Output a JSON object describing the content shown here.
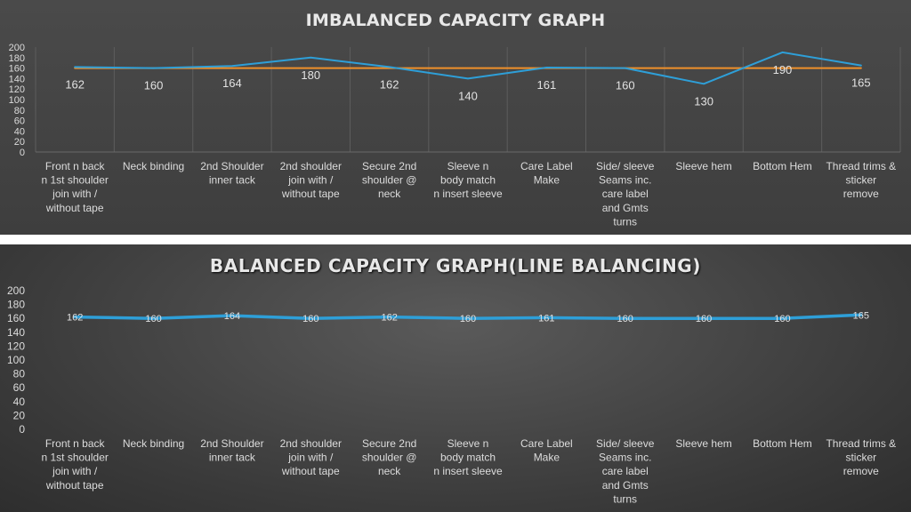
{
  "chart_data": [
    {
      "type": "line",
      "title": "IMBALANCED CAPACITY GRAPH",
      "categories": [
        "Front n back n 1st shoulder join with / without tape",
        "Neck binding",
        "2nd Shoulder inner tack",
        "2nd shoulder join with / without tape",
        "Secure 2nd shoulder @ neck",
        "Sleeve n body match n insert sleeve",
        "Care Label Make",
        "Side/ sleeve Seams inc. care label and Gmts turns",
        "Sleeve hem",
        "Bottom Hem",
        "Thread trims & sticker remove"
      ],
      "category_lines": [
        [
          "Front n back",
          "n 1st shoulder",
          "join with /",
          "without tape"
        ],
        [
          "Neck binding"
        ],
        [
          "2nd Shoulder",
          "inner tack"
        ],
        [
          "2nd shoulder",
          "join with /",
          "without tape"
        ],
        [
          "Secure 2nd",
          "shoulder @",
          "neck"
        ],
        [
          "Sleeve n",
          "body match",
          "n insert sleeve"
        ],
        [
          "Care Label",
          "Make"
        ],
        [
          "Side/ sleeve",
          "Seams inc.",
          "care label",
          "and Gmts",
          "turns"
        ],
        [
          "Sleeve hem"
        ],
        [
          "Bottom Hem"
        ],
        [
          "Thread trims &",
          "sticker",
          "remove"
        ]
      ],
      "series": [
        {
          "values": [
            162,
            160,
            164,
            180,
            162,
            140,
            161,
            160,
            130,
            190,
            165
          ],
          "color": "#2e9fd8"
        },
        {
          "values": [
            160,
            160,
            160,
            160,
            160,
            160,
            160,
            160,
            160,
            160,
            160
          ],
          "color": "#f0902a"
        }
      ],
      "data_labels": [
        "162",
        "160",
        "164",
        "180",
        "162",
        "140",
        "161",
        "160",
        "130",
        "190",
        "165"
      ],
      "yticks": [
        "0",
        "20",
        "40",
        "60",
        "80",
        "100",
        "120",
        "140",
        "160",
        "180",
        "200"
      ],
      "ylim": [
        0,
        200
      ],
      "grid": true
    },
    {
      "type": "line",
      "title": "BALANCED CAPACITY GRAPH(LINE BALANCING)",
      "categories": [
        "Front n back n 1st shoulder join with / without tape",
        "Neck binding",
        "2nd Shoulder inner tack",
        "2nd shoulder join with / without tape",
        "Secure 2nd shoulder @ neck",
        "Sleeve n body match n insert sleeve",
        "Care Label Make",
        "Side/ sleeve Seams inc. care label and Gmts turns",
        "Sleeve hem",
        "Bottom Hem",
        "Thread trims & sticker remove"
      ],
      "category_lines": [
        [
          "Front n back",
          "n 1st shoulder",
          "join with /",
          "without tape"
        ],
        [
          "Neck binding"
        ],
        [
          "2nd Shoulder",
          "inner tack"
        ],
        [
          "2nd shoulder",
          "join with /",
          "without tape"
        ],
        [
          "Secure 2nd",
          "shoulder @",
          "neck"
        ],
        [
          "Sleeve n",
          "body match",
          "n insert sleeve"
        ],
        [
          "Care Label",
          "Make"
        ],
        [
          "Side/ sleeve",
          "Seams inc.",
          "care label",
          "and Gmts",
          "turns"
        ],
        [
          "Sleeve hem"
        ],
        [
          "Bottom Hem"
        ],
        [
          "Thread trims &",
          "sticker",
          "remove"
        ]
      ],
      "series": [
        {
          "values": [
            162,
            160,
            164,
            160,
            162,
            160,
            161,
            160,
            160,
            160,
            165
          ],
          "color": "#2e9fd8"
        }
      ],
      "data_labels": [
        "162",
        "160",
        "164",
        "160",
        "162",
        "160",
        "161",
        "160",
        "160",
        "160",
        "165"
      ],
      "yticks": [
        "0",
        "20",
        "40",
        "60",
        "80",
        "100",
        "120",
        "140",
        "160",
        "180",
        "200"
      ],
      "ylim": [
        0,
        200
      ],
      "grid": false
    }
  ]
}
